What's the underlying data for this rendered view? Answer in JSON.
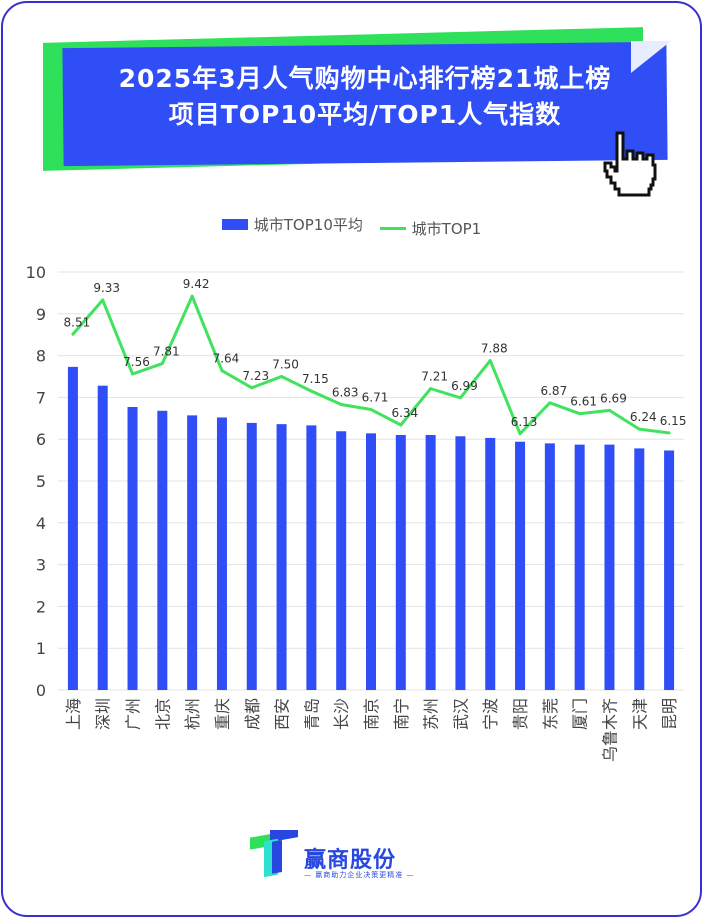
{
  "header": {
    "title_line1": "2025年3月人气购物中心排行榜21城上榜",
    "title_line2": "项目TOP10平均/TOP1人气指数"
  },
  "footer": {
    "logo_text": "赢商股份",
    "logo_sub": "— 赢商助力企业决策更精准 —"
  },
  "colors": {
    "bar": "#2f4ef5",
    "line": "#40e25e",
    "banner_blue": "#2f4ef5",
    "banner_green": "#2ee05a",
    "border": "#3b2fd0"
  },
  "chart_data": {
    "type": "bar",
    "categories": [
      "上海",
      "深圳",
      "广州",
      "北京",
      "杭州",
      "重庆",
      "成都",
      "西安",
      "青岛",
      "长沙",
      "南京",
      "南宁",
      "苏州",
      "武汉",
      "宁波",
      "贵阳",
      "东莞",
      "厦门",
      "乌鲁木齐",
      "天津",
      "昆明"
    ],
    "series": [
      {
        "name": "城市TOP10平均",
        "type": "bar",
        "values": [
          7.73,
          7.28,
          6.77,
          6.68,
          6.57,
          6.52,
          6.39,
          6.36,
          6.33,
          6.19,
          6.14,
          6.1,
          6.1,
          6.07,
          6.03,
          5.94,
          5.9,
          5.87,
          5.87,
          5.78,
          5.73
        ]
      },
      {
        "name": "城市TOP1",
        "type": "line",
        "values": [
          8.51,
          9.33,
          7.56,
          7.81,
          9.42,
          7.64,
          7.23,
          7.5,
          7.15,
          6.83,
          6.71,
          6.34,
          7.21,
          6.99,
          7.88,
          6.13,
          6.87,
          6.61,
          6.69,
          6.24,
          6.15
        ]
      }
    ],
    "data_labels": [
      "8.51",
      "9.33",
      "7.56",
      "7.81",
      "9.42",
      "7.64",
      "7.23",
      "7.50",
      "7.15",
      "6.83",
      "6.71",
      "6.34",
      "7.21",
      "6.99",
      "7.88",
      "6.13",
      "6.87",
      "6.61",
      "6.69",
      "6.24",
      "6.15"
    ],
    "ylim": [
      0,
      10
    ],
    "yticks": [
      "0",
      "1",
      "2",
      "3",
      "4",
      "5",
      "6",
      "7",
      "8",
      "9",
      "10"
    ],
    "grid": true,
    "legend_position": "top"
  }
}
